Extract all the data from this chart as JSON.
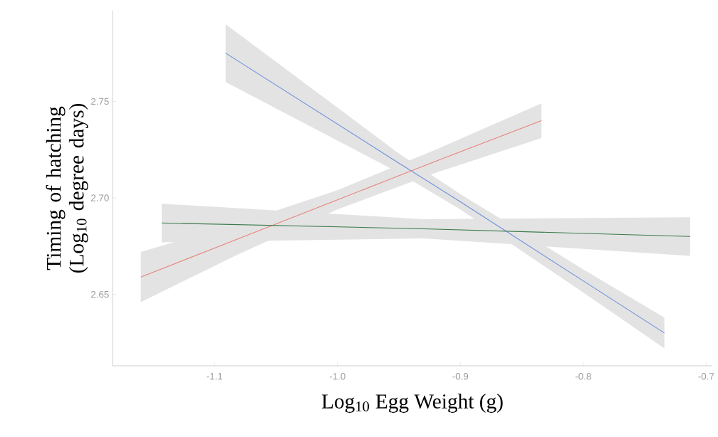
{
  "chart_data": {
    "type": "line",
    "xlabel": "Log$_{10}$ Egg Weight (g)",
    "ylabel": "Timing of hatching (Log$_{10}$ degree days)",
    "xlim": [
      -1.183,
      -0.695
    ],
    "ylim": [
      2.613,
      2.797
    ],
    "xticks": [
      {
        "value": -1.1,
        "label": "-1.1"
      },
      {
        "value": -1.0,
        "label": "-1.0"
      },
      {
        "value": -0.9,
        "label": "-0.9"
      },
      {
        "value": -0.8,
        "label": "-0.8"
      },
      {
        "value": -0.7,
        "label": "-0.7"
      }
    ],
    "yticks": [
      {
        "value": 2.65,
        "label": "2.65"
      },
      {
        "value": 2.7,
        "label": "2.70"
      },
      {
        "value": 2.75,
        "label": "2.75"
      }
    ],
    "line_style": "solid",
    "marker": "none",
    "series": [
      {
        "color": "#6a8fdc",
        "x": [
          -1.091,
          -0.95,
          -0.9,
          -0.8,
          -0.734
        ],
        "values": [
          2.775,
          2.718,
          2.698,
          2.657,
          2.63
        ],
        "lower": [
          2.76,
          2.713,
          2.694,
          2.651,
          2.622
        ],
        "upper": [
          2.79,
          2.723,
          2.702,
          2.663,
          2.638
        ]
      },
      {
        "color": "#e8827a",
        "x": [
          -1.16,
          -1.08,
          -1.0,
          -0.92,
          -0.834
        ],
        "values": [
          2.659,
          2.679,
          2.699,
          2.719,
          2.74
        ],
        "lower": [
          2.646,
          2.671,
          2.694,
          2.713,
          2.731
        ],
        "upper": [
          2.672,
          2.687,
          2.704,
          2.725,
          2.749
        ]
      },
      {
        "color": "#3a7a4a",
        "x": [
          -1.143,
          -0.93,
          -0.713
        ],
        "values": [
          2.687,
          2.684,
          2.68
        ],
        "lower": [
          2.677,
          2.679,
          2.67
        ],
        "upper": [
          2.697,
          2.689,
          2.69
        ]
      }
    ]
  }
}
